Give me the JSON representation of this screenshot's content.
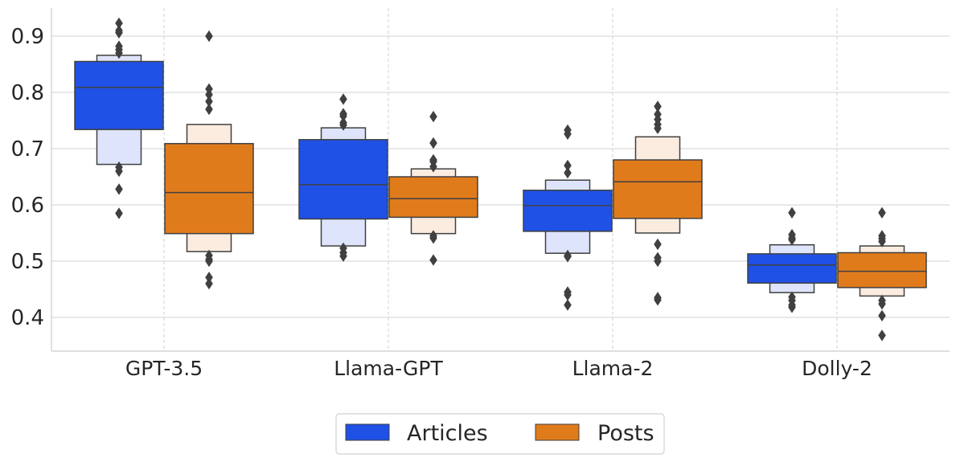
{
  "chart_data": {
    "type": "letter-value boxen plot",
    "categories": [
      "GPT-3.5",
      "Llama-GPT",
      "Llama-2",
      "Dolly-2"
    ],
    "y_ticks": [
      "0.4",
      "0.5",
      "0.6",
      "0.7",
      "0.8",
      "0.9"
    ],
    "ylim": [
      0.34,
      0.95
    ],
    "colors": {
      "Articles": "#1f51e6",
      "Articles_light": "#dde4fb",
      "Posts": "#e07b1c",
      "Posts_light": "#fcece0",
      "edge": "#404040",
      "outlier": "#404040"
    },
    "legend": {
      "placement": "bottom-center",
      "labels": [
        "Articles",
        "Posts"
      ]
    },
    "series": [
      {
        "name": "Articles",
        "boxes": [
          {
            "category": "GPT-3.5",
            "median": 0.809,
            "q1": 0.734,
            "q3": 0.855,
            "l2_low": 0.672,
            "l2_high": 0.866,
            "outliers": [
              0.923,
              0.91,
              0.906,
              0.882,
              0.876,
              0.87,
              0.667,
              0.66,
              0.628,
              0.585
            ]
          },
          {
            "category": "Llama-GPT",
            "median": 0.636,
            "q1": 0.575,
            "q3": 0.716,
            "l2_low": 0.527,
            "l2_high": 0.737,
            "outliers": [
              0.788,
              0.762,
              0.758,
              0.746,
              0.742,
              0.523,
              0.515,
              0.509
            ]
          },
          {
            "category": "Llama-2",
            "median": 0.599,
            "q1": 0.553,
            "q3": 0.626,
            "l2_low": 0.514,
            "l2_high": 0.644,
            "outliers": [
              0.733,
              0.726,
              0.67,
              0.657,
              0.51,
              0.508,
              0.445,
              0.44,
              0.422
            ]
          },
          {
            "category": "Dolly-2",
            "median": 0.493,
            "q1": 0.461,
            "q3": 0.513,
            "l2_low": 0.444,
            "l2_high": 0.529,
            "outliers": [
              0.586,
              0.547,
              0.541,
              0.538,
              0.436,
              0.43,
              0.422,
              0.418
            ]
          }
        ]
      },
      {
        "name": "Posts",
        "boxes": [
          {
            "category": "GPT-3.5",
            "median": 0.622,
            "q1": 0.549,
            "q3": 0.709,
            "l2_low": 0.517,
            "l2_high": 0.743,
            "outliers": [
              0.9,
              0.806,
              0.796,
              0.784,
              0.77,
              0.51,
              0.503,
              0.5,
              0.471,
              0.46
            ]
          },
          {
            "category": "Llama-GPT",
            "median": 0.611,
            "q1": 0.578,
            "q3": 0.65,
            "l2_low": 0.549,
            "l2_high": 0.664,
            "outliers": [
              0.757,
              0.71,
              0.68,
              0.677,
              0.668,
              0.545,
              0.541,
              0.502
            ]
          },
          {
            "category": "Llama-2",
            "median": 0.641,
            "q1": 0.576,
            "q3": 0.68,
            "l2_low": 0.55,
            "l2_high": 0.721,
            "outliers": [
              0.775,
              0.761,
              0.752,
              0.743,
              0.736,
              0.53,
              0.506,
              0.5,
              0.435,
              0.431
            ]
          },
          {
            "category": "Dolly-2",
            "median": 0.482,
            "q1": 0.453,
            "q3": 0.515,
            "l2_low": 0.438,
            "l2_high": 0.527,
            "outliers": [
              0.586,
              0.545,
              0.54,
              0.535,
              0.43,
              0.424,
              0.403,
              0.368
            ]
          }
        ]
      }
    ]
  }
}
